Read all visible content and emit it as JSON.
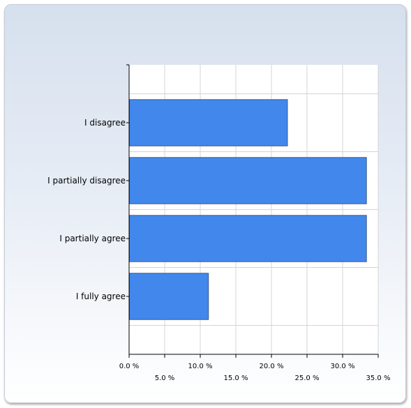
{
  "chart_data": {
    "type": "bar",
    "orientation": "horizontal",
    "categories": [
      "I disagree",
      "I partially disagree",
      "I partially agree",
      "I fully agree"
    ],
    "values": [
      22.2,
      33.3,
      33.3,
      11.1
    ],
    "xlim": [
      0,
      35
    ],
    "x_ticks": [
      0,
      5,
      10,
      15,
      20,
      25,
      30,
      35
    ],
    "x_tick_labels": [
      "0.0 %",
      "5.0 %",
      "10.0 %",
      "15.0 %",
      "20.0 %",
      "25.0 %",
      "30.0 %",
      "35.0 %"
    ],
    "grid": true,
    "bar_color": "#4287ec",
    "bar_edge_color": "#3a5a8c"
  }
}
